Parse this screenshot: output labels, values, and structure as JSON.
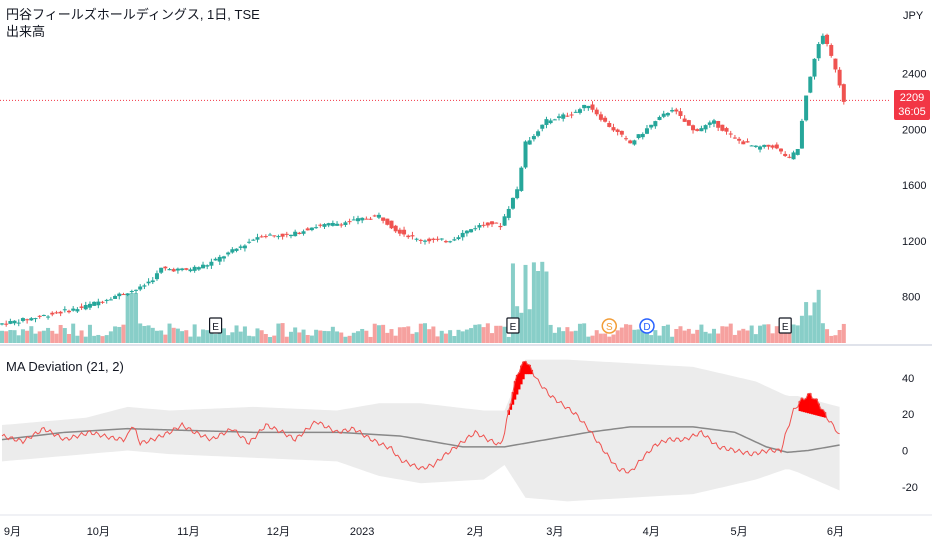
{
  "header": {
    "title": "円谷フィールズホールディングス, 1日, TSE",
    "volume_label": "出来高",
    "currency": "JPY"
  },
  "price_tag": {
    "price": "2209",
    "countdown": "36:05"
  },
  "indicator": {
    "label": "MA Deviation (21, 2)"
  },
  "colors": {
    "up": "#26a69a",
    "down": "#ef5350",
    "fill_up": "#ff0000",
    "fill_down": "#4caf50",
    "ma": "#888888",
    "band": "#ececec",
    "price_line": "#f23645"
  },
  "chart_data": [
    {
      "type": "candlestick",
      "y_ticks": [
        800,
        1200,
        1600,
        2000,
        2400
      ],
      "ylim": [
        560,
        2800
      ],
      "last_price": 2209,
      "anchors": [
        [
          0,
          600
        ],
        [
          15,
          640
        ],
        [
          30,
          690
        ],
        [
          40,
          720
        ],
        [
          55,
          800
        ],
        [
          68,
          860
        ],
        [
          75,
          940
        ],
        [
          78,
          1000
        ],
        [
          90,
          990
        ],
        [
          100,
          1030
        ],
        [
          115,
          1150
        ],
        [
          125,
          1240
        ],
        [
          140,
          1240
        ],
        [
          150,
          1300
        ],
        [
          165,
          1330
        ],
        [
          182,
          1380
        ],
        [
          190,
          1280
        ],
        [
          200,
          1210
        ],
        [
          215,
          1200
        ],
        [
          228,
          1300
        ],
        [
          235,
          1330
        ],
        [
          240,
          1310
        ],
        [
          248,
          1570
        ],
        [
          252,
          1900
        ],
        [
          262,
          2060
        ],
        [
          275,
          2120
        ],
        [
          282,
          2180
        ],
        [
          290,
          2050
        ],
        [
          302,
          1900
        ],
        [
          312,
          2030
        ],
        [
          322,
          2150
        ],
        [
          332,
          1990
        ],
        [
          342,
          2050
        ],
        [
          352,
          1930
        ],
        [
          362,
          1870
        ],
        [
          370,
          1880
        ],
        [
          378,
          1790
        ],
        [
          382,
          1860
        ],
        [
          386,
          2250
        ],
        [
          390,
          2520
        ],
        [
          394,
          2680
        ],
        [
          400,
          2440
        ],
        [
          404,
          2209
        ]
      ],
      "events": [
        {
          "label": "E",
          "index": 102,
          "color": "#131722"
        },
        {
          "label": "E",
          "index": 244,
          "color": "#131722"
        },
        {
          "label": "S",
          "index": 290,
          "color": "#f29d38"
        },
        {
          "label": "D",
          "index": 308,
          "color": "#2962ff"
        },
        {
          "label": "E",
          "index": 374,
          "color": "#131722"
        }
      ]
    },
    {
      "type": "area",
      "name": "MA Deviation (21, 2)",
      "y_ticks": [
        -20,
        0,
        20,
        40
      ],
      "ylim": [
        -30,
        52
      ],
      "deviation_anchors": [
        [
          0,
          8
        ],
        [
          10,
          5
        ],
        [
          20,
          12
        ],
        [
          30,
          6
        ],
        [
          42,
          10
        ],
        [
          52,
          7
        ],
        [
          58,
          6
        ],
        [
          60,
          8
        ],
        [
          62,
          14
        ],
        [
          64,
          10
        ],
        [
          66,
          4
        ],
        [
          72,
          6
        ],
        [
          80,
          10
        ],
        [
          86,
          14
        ],
        [
          92,
          10
        ],
        [
          100,
          6
        ],
        [
          110,
          12
        ],
        [
          118,
          4
        ],
        [
          126,
          14
        ],
        [
          134,
          10
        ],
        [
          140,
          6
        ],
        [
          150,
          16
        ],
        [
          160,
          10
        ],
        [
          168,
          12
        ],
        [
          175,
          7
        ],
        [
          180,
          4
        ],
        [
          186,
          1
        ],
        [
          190,
          -5
        ],
        [
          196,
          -8
        ],
        [
          200,
          -10
        ],
        [
          206,
          -8
        ],
        [
          212,
          -2
        ],
        [
          218,
          3
        ],
        [
          226,
          10
        ],
        [
          232,
          6
        ],
        [
          238,
          3
        ],
        [
          240,
          10
        ],
        [
          242,
          22
        ],
        [
          246,
          42
        ],
        [
          250,
          50
        ],
        [
          256,
          38
        ],
        [
          262,
          30
        ],
        [
          268,
          25
        ],
        [
          274,
          20
        ],
        [
          280,
          12
        ],
        [
          288,
          -1
        ],
        [
          294,
          -10
        ],
        [
          300,
          -12
        ],
        [
          306,
          -4
        ],
        [
          312,
          3
        ],
        [
          318,
          6
        ],
        [
          326,
          6
        ],
        [
          334,
          10
        ],
        [
          342,
          2
        ],
        [
          350,
          0
        ],
        [
          358,
          -2
        ],
        [
          366,
          0
        ],
        [
          372,
          0
        ],
        [
          374,
          8
        ],
        [
          378,
          22
        ],
        [
          382,
          28
        ],
        [
          386,
          31
        ],
        [
          390,
          26
        ],
        [
          394,
          18
        ],
        [
          398,
          12
        ],
        [
          400,
          8
        ]
      ],
      "ma_anchors": [
        [
          0,
          6
        ],
        [
          30,
          10
        ],
        [
          60,
          12
        ],
        [
          90,
          11
        ],
        [
          120,
          10
        ],
        [
          160,
          10
        ],
        [
          190,
          8
        ],
        [
          220,
          2
        ],
        [
          240,
          2
        ],
        [
          260,
          6
        ],
        [
          280,
          10
        ],
        [
          300,
          13
        ],
        [
          330,
          13
        ],
        [
          350,
          10
        ],
        [
          365,
          2
        ],
        [
          375,
          -1
        ],
        [
          385,
          0
        ],
        [
          400,
          3
        ]
      ],
      "band_anchors": [
        [
          0,
          14,
          -6
        ],
        [
          40,
          18,
          -2
        ],
        [
          60,
          24,
          0
        ],
        [
          80,
          22,
          -2
        ],
        [
          120,
          24,
          -4
        ],
        [
          160,
          22,
          -6
        ],
        [
          180,
          26,
          -14
        ],
        [
          200,
          26,
          -18
        ],
        [
          230,
          22,
          -16
        ],
        [
          240,
          22,
          -8
        ],
        [
          250,
          50,
          -26
        ],
        [
          270,
          50,
          -28
        ],
        [
          300,
          48,
          -26
        ],
        [
          330,
          46,
          -24
        ],
        [
          360,
          38,
          -16
        ],
        [
          375,
          30,
          -10
        ],
        [
          380,
          30,
          -12
        ],
        [
          400,
          24,
          -22
        ]
      ]
    }
  ],
  "x_axis": {
    "labels": [
      {
        "text": "9月",
        "index": 5
      },
      {
        "text": "10月",
        "index": 46
      },
      {
        "text": "11月",
        "index": 89
      },
      {
        "text": "12月",
        "index": 132
      },
      {
        "text": "2023",
        "index": 172
      },
      {
        "text": "2月",
        "index": 226
      },
      {
        "text": "3月",
        "index": 264
      },
      {
        "text": "4月",
        "index": 310
      },
      {
        "text": "5月",
        "index": 352
      },
      {
        "text": "6月",
        "index": 398
      }
    ],
    "total_points": 404
  }
}
